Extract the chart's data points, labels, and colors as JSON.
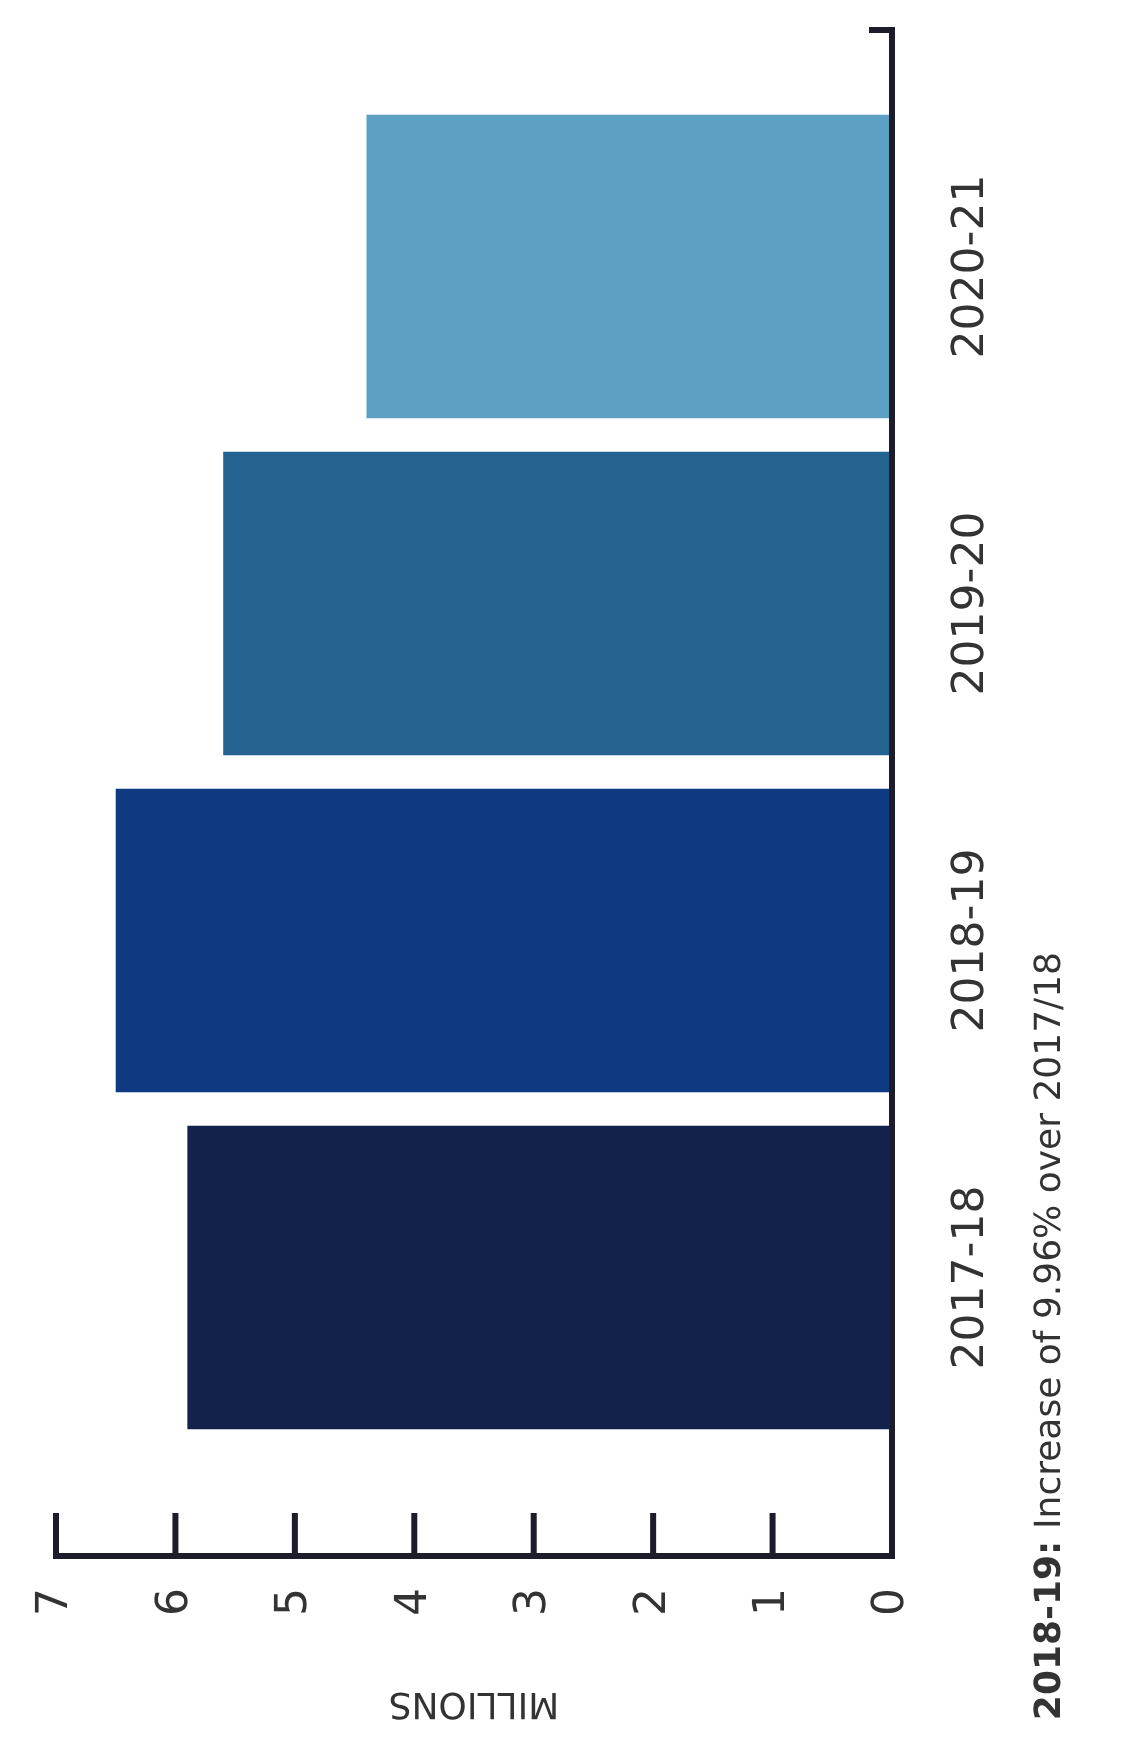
{
  "chart_data": {
    "type": "bar",
    "orientation": "horizontal",
    "categories": [
      "2020-21",
      "2019-20",
      "2018-19",
      "2017-18"
    ],
    "values": [
      4.4,
      5.6,
      6.5,
      5.9
    ],
    "colors": [
      "#5ea0c4",
      "#24628f",
      "#0d3a80",
      "#13214d"
    ],
    "xlabel": "MILLIONS",
    "xlim": [
      7,
      0
    ],
    "xticks": [
      0,
      1,
      2,
      3,
      4,
      5,
      6,
      7
    ],
    "grid": false,
    "annotations": [
      "2018-19: Increase of 9.96% over 2017/18"
    ]
  }
}
